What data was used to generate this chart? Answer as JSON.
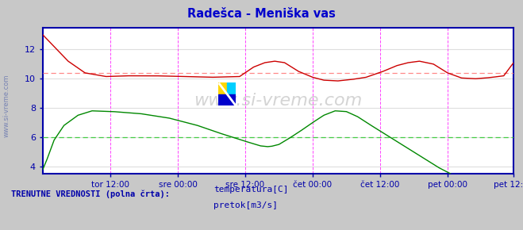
{
  "title": "Radešca - Meniška vas",
  "title_color": "#0000cc",
  "background_color": "#c8c8c8",
  "plot_bg_color": "#ffffff",
  "watermark": "www.si-vreme.com",
  "ylim": [
    3.5,
    13.5
  ],
  "yticks": [
    4,
    6,
    8,
    10,
    12
  ],
  "xlabel_ticks": [
    "tor 12:00",
    "sre 00:00",
    "sre 12:00",
    "čet 00:00",
    "čet 12:00",
    "pet 00:00",
    "pet 12:00"
  ],
  "n_points": 336,
  "temp_avg": 10.4,
  "flow_avg": 6.0,
  "grid_color": "#dddddd",
  "vline_color": "#ff44ff",
  "hline_temp_color": "#ff8888",
  "hline_flow_color": "#44cc44",
  "temp_color": "#cc0000",
  "flow_color": "#008800",
  "axis_color": "#0000aa",
  "tick_color": "#0000aa",
  "legend_label_color": "#0000aa",
  "bottom_text": "TRENUTNE VREDNOSTI (polna črta):",
  "legend_items": [
    {
      "label": "temperatura[C]",
      "color": "#cc0000"
    },
    {
      "label": "pretok[m3/s]",
      "color": "#008800"
    }
  ],
  "tick_positions": [
    48,
    96,
    144,
    192,
    240,
    288,
    335
  ],
  "watermark_color": "#aaaaaa",
  "watermark_alpha": 0.5
}
